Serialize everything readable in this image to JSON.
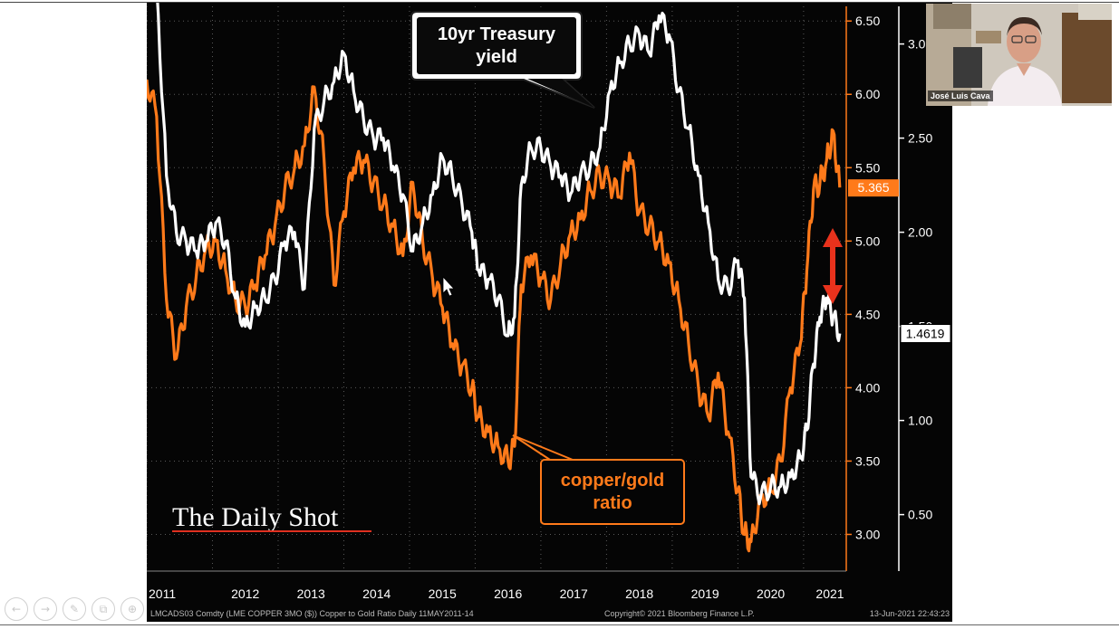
{
  "chart_data": {
    "type": "line",
    "title": "",
    "xlabel": "",
    "ylabel_left": "",
    "x_tick_labels": [
      "2011",
      "2012",
      "2013",
      "2014",
      "2015",
      "2016",
      "2017",
      "2018",
      "2019",
      "2020",
      "2021"
    ],
    "x_range": [
      2011.0,
      2021.65
    ],
    "y_left": {
      "min": 2.75,
      "max": 6.6,
      "ticks": [
        3.0,
        3.5,
        4.0,
        4.5,
        5.0,
        5.5,
        6.0,
        6.5
      ],
      "tick_labels": [
        "3.00",
        "3.50",
        "4.00",
        "4.50",
        "5.00",
        "5.50",
        "6.00",
        "6.50"
      ],
      "color": "#ff7a1a"
    },
    "y_right": {
      "min": 0.2,
      "max": 3.2,
      "ticks": [
        0.5,
        1.0,
        1.5,
        2.0,
        2.5,
        3.0
      ],
      "tick_labels": [
        "0.50",
        "1.00",
        "1.50",
        "2.00",
        "2.50",
        "3.0"
      ],
      "color": "#ffffff"
    },
    "series": [
      {
        "name": "copper/gold ratio",
        "axis": "left",
        "color": "#ff7a1a",
        "last_value_label": "5.365",
        "x": [
          2011.0,
          2011.15,
          2011.3,
          2011.45,
          2011.6,
          2011.75,
          2011.9,
          2012.05,
          2012.2,
          2012.35,
          2012.5,
          2012.65,
          2012.8,
          2012.95,
          2013.1,
          2013.25,
          2013.4,
          2013.55,
          2013.7,
          2013.85,
          2014.0,
          2014.15,
          2014.3,
          2014.45,
          2014.6,
          2014.75,
          2014.9,
          2015.05,
          2015.2,
          2015.35,
          2015.5,
          2015.65,
          2015.8,
          2015.95,
          2016.05,
          2016.2,
          2016.35,
          2016.5,
          2016.6,
          2016.7,
          2016.85,
          2017.0,
          2017.15,
          2017.3,
          2017.45,
          2017.6,
          2017.75,
          2017.9,
          2018.05,
          2018.2,
          2018.35,
          2018.5,
          2018.65,
          2018.8,
          2018.95,
          2019.1,
          2019.25,
          2019.4,
          2019.55,
          2019.7,
          2019.85,
          2020.0,
          2020.1,
          2020.2,
          2020.35,
          2020.5,
          2020.65,
          2020.8,
          2020.95,
          2021.05,
          2021.15,
          2021.25,
          2021.35,
          2021.45,
          2021.55
        ],
        "y": [
          6.1,
          5.85,
          4.6,
          4.2,
          4.55,
          4.75,
          4.95,
          5.0,
          4.8,
          4.6,
          4.55,
          4.7,
          4.9,
          5.1,
          5.35,
          5.5,
          5.65,
          6.05,
          5.55,
          4.7,
          5.2,
          5.5,
          5.55,
          5.4,
          5.25,
          5.1,
          4.9,
          5.4,
          5.0,
          4.75,
          4.55,
          4.3,
          4.15,
          4.0,
          3.8,
          3.7,
          3.6,
          3.5,
          3.6,
          4.7,
          4.9,
          4.75,
          4.6,
          4.85,
          5.05,
          5.15,
          5.35,
          5.45,
          5.4,
          5.3,
          5.6,
          5.2,
          5.1,
          5.0,
          4.85,
          4.6,
          4.3,
          4.0,
          3.8,
          4.1,
          3.7,
          3.3,
          3.0,
          2.95,
          3.25,
          3.3,
          3.5,
          4.0,
          4.3,
          4.8,
          5.35,
          5.4,
          5.55,
          5.75,
          5.365
        ]
      },
      {
        "name": "10yr Treasury yield",
        "axis": "right",
        "color": "#ffffff",
        "last_value_label": "1.4619",
        "x": [
          2011.0,
          2011.15,
          2011.3,
          2011.45,
          2011.6,
          2011.75,
          2011.9,
          2012.05,
          2012.2,
          2012.35,
          2012.5,
          2012.65,
          2012.8,
          2012.95,
          2013.1,
          2013.25,
          2013.4,
          2013.55,
          2013.7,
          2013.85,
          2014.0,
          2014.15,
          2014.3,
          2014.45,
          2014.6,
          2014.75,
          2014.9,
          2015.05,
          2015.2,
          2015.35,
          2015.5,
          2015.65,
          2015.8,
          2015.95,
          2016.05,
          2016.2,
          2016.35,
          2016.5,
          2016.6,
          2016.7,
          2016.85,
          2017.0,
          2017.15,
          2017.3,
          2017.45,
          2017.6,
          2017.75,
          2017.9,
          2018.05,
          2018.2,
          2018.35,
          2018.5,
          2018.65,
          2018.8,
          2018.95,
          2019.1,
          2019.25,
          2019.4,
          2019.55,
          2019.7,
          2019.85,
          2020.0,
          2020.1,
          2020.2,
          2020.35,
          2020.5,
          2020.65,
          2020.8,
          2020.95,
          2021.05,
          2021.15,
          2021.25,
          2021.35,
          2021.45,
          2021.55
        ],
        "y": [
          3.4,
          3.3,
          2.3,
          2.0,
          1.95,
          1.9,
          1.95,
          2.05,
          1.95,
          1.65,
          1.5,
          1.6,
          1.65,
          1.75,
          1.95,
          2.0,
          1.7,
          2.55,
          2.7,
          2.8,
          2.95,
          2.75,
          2.6,
          2.5,
          2.5,
          2.35,
          2.2,
          1.9,
          2.05,
          2.2,
          2.4,
          2.3,
          2.15,
          2.0,
          1.8,
          1.75,
          1.65,
          1.45,
          1.55,
          2.25,
          2.45,
          2.45,
          2.35,
          2.3,
          2.2,
          2.3,
          2.35,
          2.45,
          2.75,
          2.9,
          3.0,
          3.05,
          2.95,
          3.15,
          3.05,
          2.75,
          2.55,
          2.3,
          2.05,
          1.75,
          1.7,
          1.85,
          1.65,
          0.7,
          0.6,
          0.65,
          0.65,
          0.7,
          0.8,
          0.95,
          1.3,
          1.55,
          1.65,
          1.55,
          1.4619
        ]
      }
    ],
    "annotations": [
      {
        "name": "treasury-callout",
        "lines": [
          "10yr Treasury",
          "yield"
        ]
      },
      {
        "name": "copper-gold-callout",
        "lines": [
          "copper/gold",
          "ratio"
        ]
      }
    ],
    "logo": "The Daily Shot",
    "footer_left": "LMCADS03 Comdty (LME COPPER   3MO ($)) Copper to Gold Ratio  Daily 11MAY2011-14",
    "footer_copyright": "Copyright© 2021 Bloomberg Finance L.P.",
    "footer_timestamp": "13-Jun-2021 22:43:23"
  },
  "webcam": {
    "presenter_name": "José Luis Cava"
  },
  "slide_controls": [
    {
      "name": "prev-slide-icon",
      "glyph": "←"
    },
    {
      "name": "next-slide-icon",
      "glyph": "→"
    },
    {
      "name": "pen-icon",
      "glyph": "✎"
    },
    {
      "name": "copy-slide-icon",
      "glyph": "⧉"
    },
    {
      "name": "zoom-icon",
      "glyph": "⊕"
    }
  ],
  "colors": {
    "background": "#050505",
    "orange": "#ff7a1a",
    "white": "#ffffff",
    "grid": "#5a5a5a",
    "arrow_red": "#e8321c"
  }
}
